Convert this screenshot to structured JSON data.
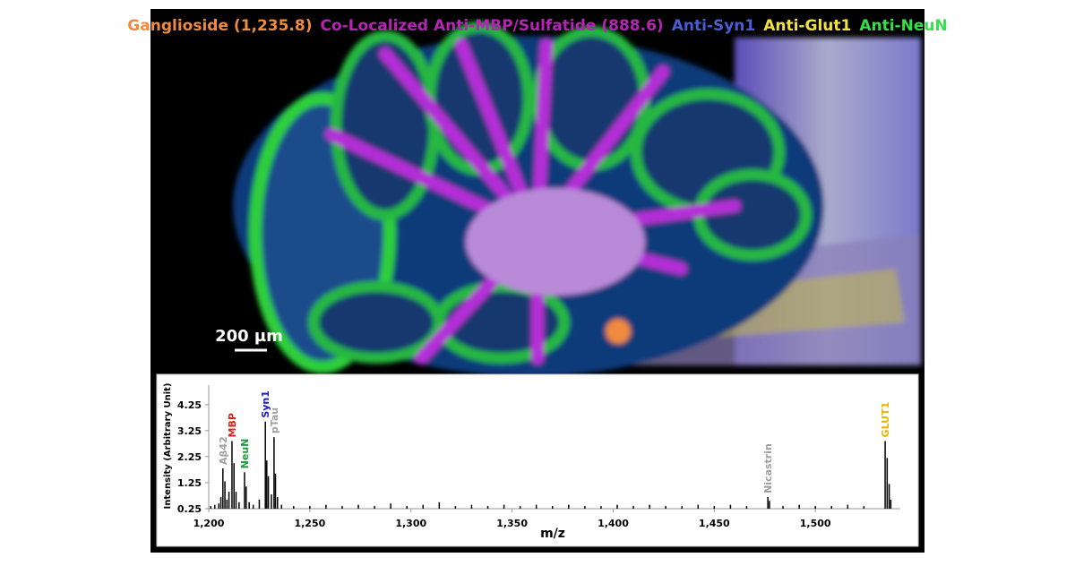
{
  "image_labels": [
    {
      "text": "Ganglioside (1,235.8)",
      "color": "#f08a3c"
    },
    {
      "text": "Co-Localized Anti-MBP/Sulfatide (888.6)",
      "color": "#b524b5"
    },
    {
      "text": "Anti-Syn1",
      "color": "#4a5bd6"
    },
    {
      "text": "Anti-Glut1",
      "color": "#f2e23c"
    },
    {
      "text": "Anti-NeuN",
      "color": "#34e04a"
    }
  ],
  "scale_bar": "200 µm",
  "chart_data": {
    "type": "bar",
    "x_label": "m/z",
    "y_label": "Intensity (Arbitrary Unit)",
    "color": "#000000",
    "x": [
      1201,
      1203,
      1205,
      1206,
      1207,
      1208,
      1209,
      1210,
      1211.5,
      1212.5,
      1213.5,
      1215,
      1217.7,
      1218.5,
      1220,
      1222,
      1225,
      1228,
      1228.7,
      1229.5,
      1231,
      1232.3,
      1233,
      1234,
      1236,
      1242,
      1250,
      1258,
      1266,
      1274,
      1282,
      1290,
      1298,
      1306,
      1314,
      1322,
      1330,
      1338,
      1346,
      1354,
      1362,
      1370,
      1378,
      1386,
      1394,
      1402,
      1410,
      1418,
      1426,
      1434,
      1442,
      1450,
      1458,
      1466,
      1476.5,
      1477.3,
      1484,
      1492,
      1500,
      1508,
      1516,
      1524,
      1534.5,
      1535.5,
      1536.5,
      1537.3
    ],
    "values": [
      0.35,
      0.4,
      0.45,
      0.7,
      1.8,
      1.3,
      0.6,
      0.9,
      2.85,
      2.0,
      0.9,
      0.5,
      1.65,
      1.1,
      0.5,
      0.4,
      0.6,
      3.6,
      2.1,
      1.5,
      0.8,
      3.0,
      1.6,
      0.7,
      0.4,
      0.35,
      0.35,
      0.4,
      0.35,
      0.4,
      0.35,
      0.45,
      0.35,
      0.4,
      0.5,
      0.35,
      0.4,
      0.35,
      0.4,
      0.35,
      0.4,
      0.35,
      0.4,
      0.35,
      0.35,
      0.4,
      0.35,
      0.4,
      0.35,
      0.35,
      0.4,
      0.35,
      0.4,
      0.35,
      0.7,
      0.55,
      0.35,
      0.4,
      0.35,
      0.35,
      0.4,
      0.35,
      2.85,
      2.2,
      1.2,
      0.6
    ],
    "xlim": [
      1200,
      1542
    ],
    "ylim": [
      0.25,
      5.0
    ],
    "xticks": [
      {
        "value": 1200,
        "label": "1,200"
      },
      {
        "value": 1250,
        "label": "1,250"
      },
      {
        "value": 1300,
        "label": "1,300"
      },
      {
        "value": 1350,
        "label": "1,350"
      },
      {
        "value": 1400,
        "label": "1,400"
      },
      {
        "value": 1450,
        "label": "1,450"
      },
      {
        "value": 1500,
        "label": "1,500"
      }
    ],
    "yticks": [
      0.25,
      1.25,
      2.25,
      3.25,
      4.25
    ],
    "annotations": [
      {
        "text": "Aβ42",
        "x": 1207,
        "color": "#a0a0a0"
      },
      {
        "text": "MBP",
        "x": 1211.5,
        "color": "#e0201c"
      },
      {
        "text": "NeuN",
        "x": 1217.7,
        "color": "#1a9a3c"
      },
      {
        "text": "Syn1",
        "x": 1228,
        "color": "#1a1ac0"
      },
      {
        "text": "pTau",
        "x": 1232.3,
        "color": "#a0a0a0"
      },
      {
        "text": "Nicastrin",
        "x": 1476.5,
        "color": "#a0a0a0"
      },
      {
        "text": "GLUT1",
        "x": 1534.5,
        "color": "#e8b400"
      }
    ]
  }
}
